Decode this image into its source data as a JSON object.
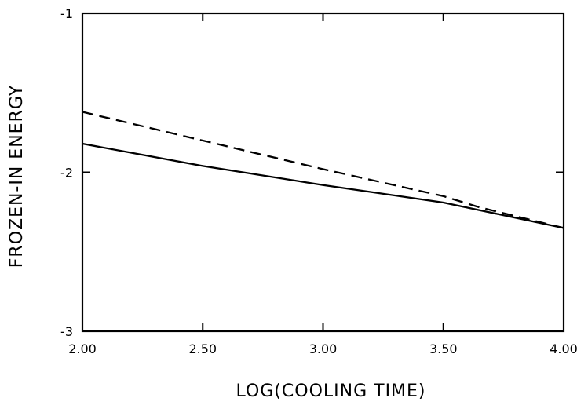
{
  "chart_data": {
    "type": "line",
    "title": "",
    "xlabel": "LOG(COOLING TIME)",
    "ylabel": "FROZEN-IN ENERGY",
    "xlim": [
      2.0,
      4.0
    ],
    "ylim": [
      -3,
      -1
    ],
    "x_ticks": [
      2.0,
      2.5,
      3.0,
      3.5,
      4.0
    ],
    "x_tick_labels": [
      "2.00",
      "2.50",
      "3.00",
      "3.50",
      "4.00"
    ],
    "y_ticks": [
      -3,
      -2,
      -1
    ],
    "y_tick_labels": [
      "-3",
      "-2",
      "-1"
    ],
    "grid": false,
    "legend": "none",
    "series": [
      {
        "style": "solid",
        "x": [
          2.0,
          2.5,
          3.0,
          3.5,
          4.0
        ],
        "y": [
          -1.82,
          -1.96,
          -2.08,
          -2.19,
          -2.35
        ]
      },
      {
        "style": "dashed",
        "x": [
          2.0,
          2.5,
          3.0,
          3.5,
          3.65,
          4.0
        ],
        "y": [
          -1.62,
          -1.8,
          -1.98,
          -2.15,
          -2.22,
          -2.35
        ]
      }
    ]
  }
}
